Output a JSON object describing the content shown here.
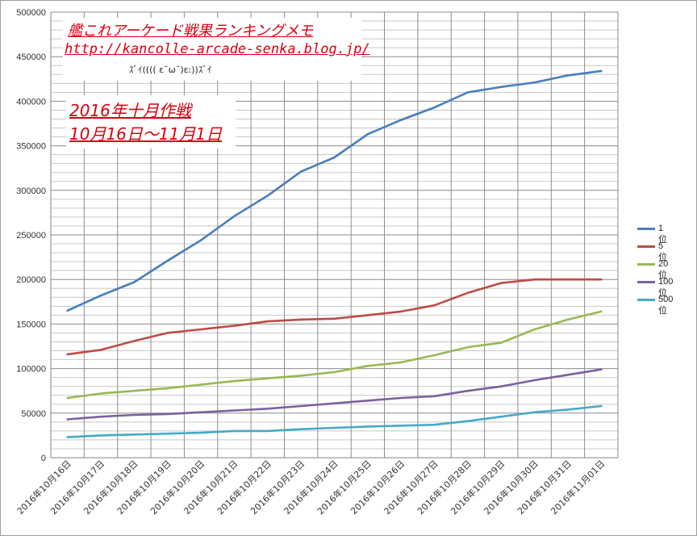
{
  "annotations": {
    "site_title": "艦これアーケード戦果ランキングメモ",
    "site_url": "http://kancolle-arcade-senka.blog.jp/",
    "emote": "ｽﾞｲ(((( ε˘ω˘)ε:))ｽﾞｲ",
    "event_title": "2016年十月作戦",
    "event_dates": "10月16日～11月1日"
  },
  "colors": {
    "1位": "#4a7ebb",
    "5位": "#be4b48",
    "20位": "#98b954",
    "100位": "#7d60a0",
    "500位": "#46aac5",
    "grid": "#8c8c8c"
  },
  "chart_data": {
    "type": "line",
    "title": "",
    "xlabel": "",
    "ylabel": "",
    "ylim": [
      0,
      500000
    ],
    "ytick_step": 50000,
    "grid": "horizontal and vertical",
    "legend_position": "right",
    "categories": [
      "2016年10月16日",
      "2016年10月17日",
      "2016年10月18日",
      "2016年10月19日",
      "2016年10月20日",
      "2016年10月21日",
      "2016年10月22日",
      "2016年10月23日",
      "2016年10月24日",
      "2016年10月25日",
      "2016年10月26日",
      "2016年10月27日",
      "2016年10月28日",
      "2016年10月29日",
      "2016年10月30日",
      "2016年10月31日",
      "2016年11月01日"
    ],
    "series": [
      {
        "name": "1位",
        "values": [
          165000,
          182000,
          197000,
          221000,
          244000,
          271000,
          294000,
          321000,
          337000,
          363000,
          379000,
          393000,
          410000,
          416000,
          421000,
          429000,
          434000
        ]
      },
      {
        "name": "5位",
        "values": [
          116000,
          121000,
          131000,
          140000,
          144000,
          148000,
          153000,
          155000,
          156000,
          160000,
          164000,
          171000,
          185000,
          196000,
          200000,
          200000,
          200000
        ]
      },
      {
        "name": "20位",
        "values": [
          67000,
          72000,
          75000,
          78000,
          82000,
          86000,
          89000,
          92000,
          96000,
          103000,
          107000,
          115000,
          124000,
          129000,
          144000,
          155000,
          164000
        ]
      },
      {
        "name": "100位",
        "values": [
          43000,
          46000,
          48000,
          49000,
          51000,
          53000,
          55000,
          58000,
          61000,
          64000,
          67000,
          69000,
          75000,
          80000,
          87000,
          93000,
          99000
        ]
      },
      {
        "name": "500位",
        "values": [
          23000,
          25000,
          26000,
          27000,
          28000,
          30000,
          30000,
          32000,
          33500,
          35000,
          36000,
          37000,
          41000,
          46000,
          51000,
          54000,
          58000
        ]
      }
    ]
  }
}
